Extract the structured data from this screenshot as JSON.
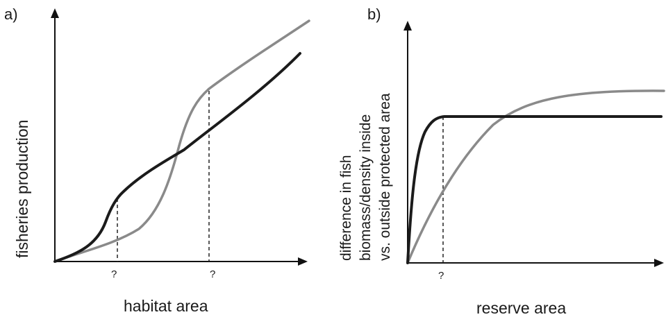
{
  "panel_a": {
    "label": "a)",
    "y_axis_label": "fisheries production",
    "x_axis_label": "habitat area",
    "marker_1": "?",
    "marker_2": "?"
  },
  "panel_b": {
    "label": "b)",
    "y_axis_label_lines": [
      "difference in fish",
      "biomass/density inside",
      "vs. outside protected area"
    ],
    "x_axis_label": "reserve area",
    "marker_1": "?"
  },
  "colors": {
    "dark_curve": "#1b1b1b",
    "grey_curve": "#8a8a8a",
    "axis": "#111111"
  }
}
